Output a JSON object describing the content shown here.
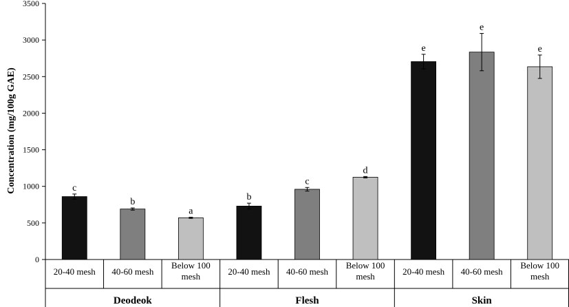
{
  "chart_data": {
    "type": "bar",
    "ylabel": "Concentration  (mg/100g GAE)",
    "ylim": [
      0,
      3500
    ],
    "yticks": [
      0,
      500,
      1000,
      1500,
      2000,
      2500,
      3000,
      3500
    ],
    "grid": false,
    "legend": "none",
    "groups": [
      {
        "name": "Deodeok",
        "bars": [
          {
            "label": [
              "20-40 mesh"
            ],
            "value": 860,
            "error": 35,
            "letter": "c",
            "color": "#121212"
          },
          {
            "label": [
              "40-60 mesh"
            ],
            "value": 690,
            "error": 15,
            "letter": "b",
            "color": "#7f7f7f"
          },
          {
            "label": [
              "Below 100",
              "mesh"
            ],
            "value": 570,
            "error": 8,
            "letter": "a",
            "color": "#bfbfbf"
          }
        ]
      },
      {
        "name": "Flesh",
        "bars": [
          {
            "label": [
              "20-40 mesh"
            ],
            "value": 730,
            "error": 40,
            "letter": "b",
            "color": "#121212"
          },
          {
            "label": [
              "40-60 mesh"
            ],
            "value": 960,
            "error": 25,
            "letter": "c",
            "color": "#7f7f7f"
          },
          {
            "label": [
              "Below 100",
              "mesh"
            ],
            "value": 1125,
            "error": 10,
            "letter": "d",
            "color": "#bfbfbf"
          }
        ]
      },
      {
        "name": "Skin",
        "bars": [
          {
            "label": [
              "20-40 mesh"
            ],
            "value": 2705,
            "error": 100,
            "letter": "e",
            "color": "#121212"
          },
          {
            "label": [
              "40-60 mesh"
            ],
            "value": 2835,
            "error": 255,
            "letter": "e",
            "color": "#7f7f7f"
          },
          {
            "label": [
              "Below 100",
              "mesh"
            ],
            "value": 2635,
            "error": 160,
            "letter": "e",
            "color": "#bfbfbf"
          }
        ]
      }
    ]
  }
}
